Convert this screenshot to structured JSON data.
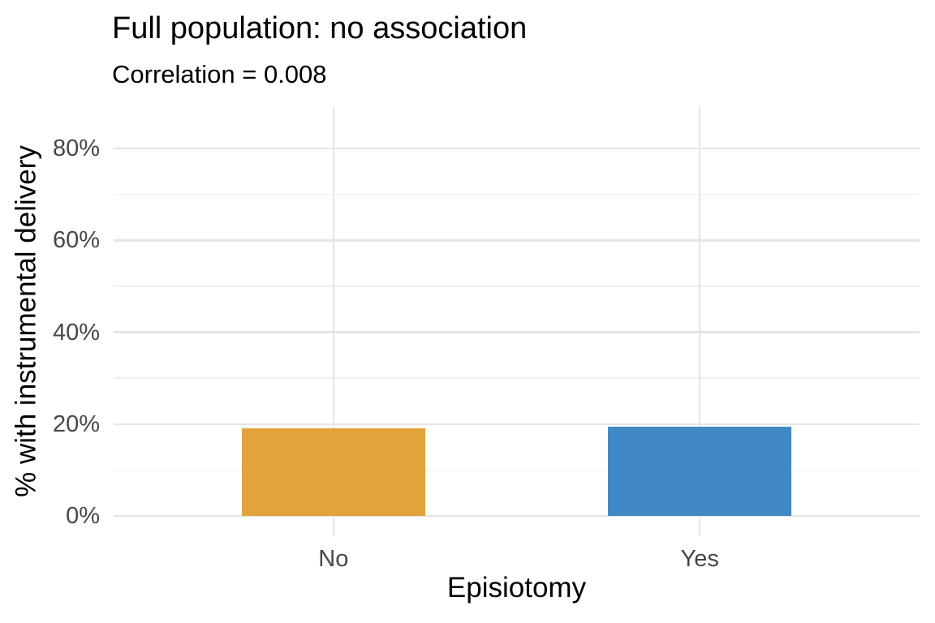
{
  "style": {
    "background": "#FFFFFF",
    "grid_major_color": "#E5E5E5",
    "grid_minor_color": "#F0F0F0",
    "tick_label_color": "#474747",
    "text_color": "#000000"
  },
  "chart_data": {
    "type": "bar",
    "title": "Full population: no association",
    "subtitle": "Correlation = 0.008",
    "xlabel": "Episiotomy",
    "ylabel": "% with instrumental delivery",
    "categories": [
      "No",
      "Yes"
    ],
    "values": [
      19.0,
      19.5
    ],
    "value_unit": "percent",
    "series_colors": [
      "#E2A33C",
      "#4189C4"
    ],
    "y_ticks": [
      0,
      20,
      40,
      60,
      80
    ],
    "y_tick_labels": [
      "0%",
      "20%",
      "40%",
      "60%",
      "80%"
    ],
    "y_minor_ticks": [
      10,
      30,
      50,
      70
    ],
    "ylim": [
      -4.4,
      89.0
    ],
    "grid": true,
    "legend": "none"
  }
}
